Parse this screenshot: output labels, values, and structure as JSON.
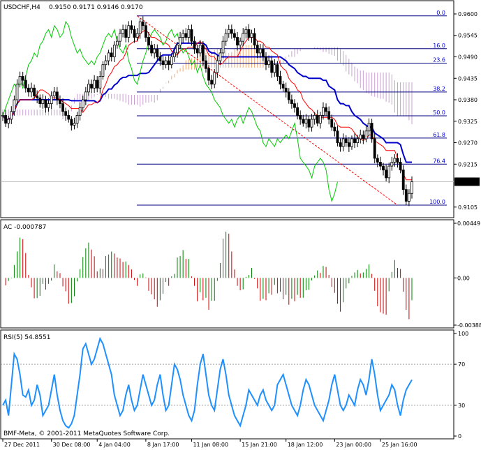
{
  "chart_data": [
    {
      "type": "candlestick",
      "symbol_label": "USDCHF,H4",
      "ohlc_label": "0.9150 0.9171 0.9146 0.9170",
      "current_price": 0.917,
      "current_price_label": "0.9170",
      "ylim": [
        0.9085,
        0.9625
      ],
      "y_ticks": [
        "0.9600",
        "0.9545",
        "0.9490",
        "0.9435",
        "0.9380",
        "0.9325",
        "0.9270",
        "0.9215",
        "0.9105"
      ],
      "y_tick_values": [
        0.96,
        0.9545,
        0.949,
        0.9435,
        0.938,
        0.9325,
        0.927,
        0.9215,
        0.9105
      ],
      "x_labels": [
        "27 Dec 2011",
        "30 Dec 08:00",
        "4 Jan 04:00",
        "8 Jan 17:00",
        "11 Jan 08:00",
        "15 Jan 21:00",
        "18 Jan 12:00",
        "23 Jan 00:00",
        "25 Jan 16:00"
      ],
      "x_label_bars": [
        0,
        17,
        33,
        50,
        66,
        83,
        99,
        116,
        132
      ],
      "bar_count": 144,
      "closes": [
        0.934,
        0.932,
        0.933,
        0.935,
        0.938,
        0.942,
        0.944,
        0.943,
        0.941,
        0.94,
        0.941,
        0.939,
        0.9385,
        0.937,
        0.938,
        0.936,
        0.937,
        0.939,
        0.94,
        0.938,
        0.937,
        0.935,
        0.934,
        0.933,
        0.9315,
        0.932,
        0.934,
        0.936,
        0.938,
        0.94,
        0.942,
        0.941,
        0.943,
        0.941,
        0.944,
        0.947,
        0.948,
        0.95,
        0.949,
        0.952,
        0.953,
        0.955,
        0.956,
        0.954,
        0.957,
        0.956,
        0.954,
        0.955,
        0.958,
        0.957,
        0.954,
        0.952,
        0.95,
        0.951,
        0.949,
        0.948,
        0.947,
        0.948,
        0.947,
        0.949,
        0.95,
        0.952,
        0.954,
        0.955,
        0.954,
        0.956,
        0.953,
        0.951,
        0.95,
        0.952,
        0.948,
        0.946,
        0.943,
        0.942,
        0.945,
        0.948,
        0.95,
        0.953,
        0.955,
        0.956,
        0.955,
        0.954,
        0.952,
        0.953,
        0.955,
        0.956,
        0.954,
        0.955,
        0.952,
        0.95,
        0.951,
        0.949,
        0.947,
        0.948,
        0.945,
        0.947,
        0.944,
        0.942,
        0.941,
        0.94,
        0.938,
        0.937,
        0.936,
        0.934,
        0.933,
        0.932,
        0.933,
        0.931,
        0.933,
        0.934,
        0.932,
        0.934,
        0.936,
        0.935,
        0.933,
        0.931,
        0.93,
        0.927,
        0.926,
        0.928,
        0.927,
        0.926,
        0.928,
        0.927,
        0.928,
        0.929,
        0.928,
        0.93,
        0.932,
        0.928,
        0.923,
        0.922,
        0.921,
        0.92,
        0.918,
        0.921,
        0.922,
        0.923,
        0.922,
        0.92,
        0.915,
        0.912,
        0.914,
        0.917
      ],
      "fib_levels": [
        {
          "label": "0.0",
          "value": 0.9595
        },
        {
          "label": "16.0",
          "value": 0.9511
        },
        {
          "label": "23.6",
          "value": 0.9474
        },
        {
          "label": "38.2",
          "value": 0.94
        },
        {
          "label": "50.0",
          "value": 0.9339
        },
        {
          "label": "61.8",
          "value": 0.9282
        },
        {
          "label": "76.4",
          "value": 0.9215
        },
        {
          "label": "100.0",
          "value": 0.911
        }
      ]
    },
    {
      "type": "histogram",
      "title": "AC -0.000787",
      "ylim": [
        -0.00388,
        0.00449
      ],
      "y_ticks": [
        "0.00449",
        "0.00",
        "-0.00388"
      ],
      "y_tick_values": [
        0.00449,
        0,
        -0.00388
      ]
    },
    {
      "type": "line",
      "title": "RSI(5) 54.8551",
      "ylim": [
        0,
        100
      ],
      "y_ticks": [
        "100",
        "70",
        "30",
        "0"
      ],
      "y_tick_values": [
        100,
        70,
        30,
        0
      ],
      "values": [
        30,
        35,
        20,
        50,
        80,
        75,
        60,
        40,
        38,
        45,
        30,
        35,
        50,
        40,
        20,
        25,
        30,
        45,
        60,
        40,
        25,
        15,
        10,
        8,
        12,
        20,
        40,
        60,
        85,
        90,
        80,
        70,
        75,
        85,
        95,
        90,
        80,
        70,
        60,
        40,
        30,
        20,
        25,
        40,
        50,
        35,
        25,
        30,
        45,
        60,
        50,
        40,
        30,
        35,
        50,
        60,
        40,
        25,
        30,
        50,
        70,
        65,
        55,
        40,
        30,
        20,
        15,
        25,
        50,
        70,
        80,
        60,
        40,
        30,
        25,
        45,
        65,
        75,
        60,
        40,
        30,
        20,
        15,
        10,
        20,
        30,
        45,
        40,
        35,
        30,
        40,
        45,
        35,
        30,
        25,
        30,
        50,
        55,
        60,
        50,
        40,
        30,
        25,
        20,
        30,
        45,
        55,
        50,
        40,
        30,
        25,
        20,
        15,
        25,
        35,
        50,
        60,
        45,
        30,
        25,
        30,
        40,
        35,
        30,
        45,
        55,
        50,
        40,
        55,
        75,
        60,
        40,
        25,
        30,
        35,
        40,
        50,
        45,
        30,
        20,
        35,
        45,
        50,
        54.86
      ]
    }
  ],
  "footer": {
    "copyright": "BMF-Meta, © 2001-2011 MetaQuotes Software Corp."
  },
  "colors": {
    "bull_candle": "#000000",
    "bear_candle": "#000000",
    "tenkan": "#ff0000",
    "kijun": "#0000cc",
    "chikou": "#00cc00",
    "kumo_up": "#f2a874",
    "kumo_down": "#c8a0d0",
    "fib_lines": "#000080",
    "ac_up": "#008000",
    "ac_down": "#cc0000",
    "rsi_line": "#1e90ff"
  }
}
